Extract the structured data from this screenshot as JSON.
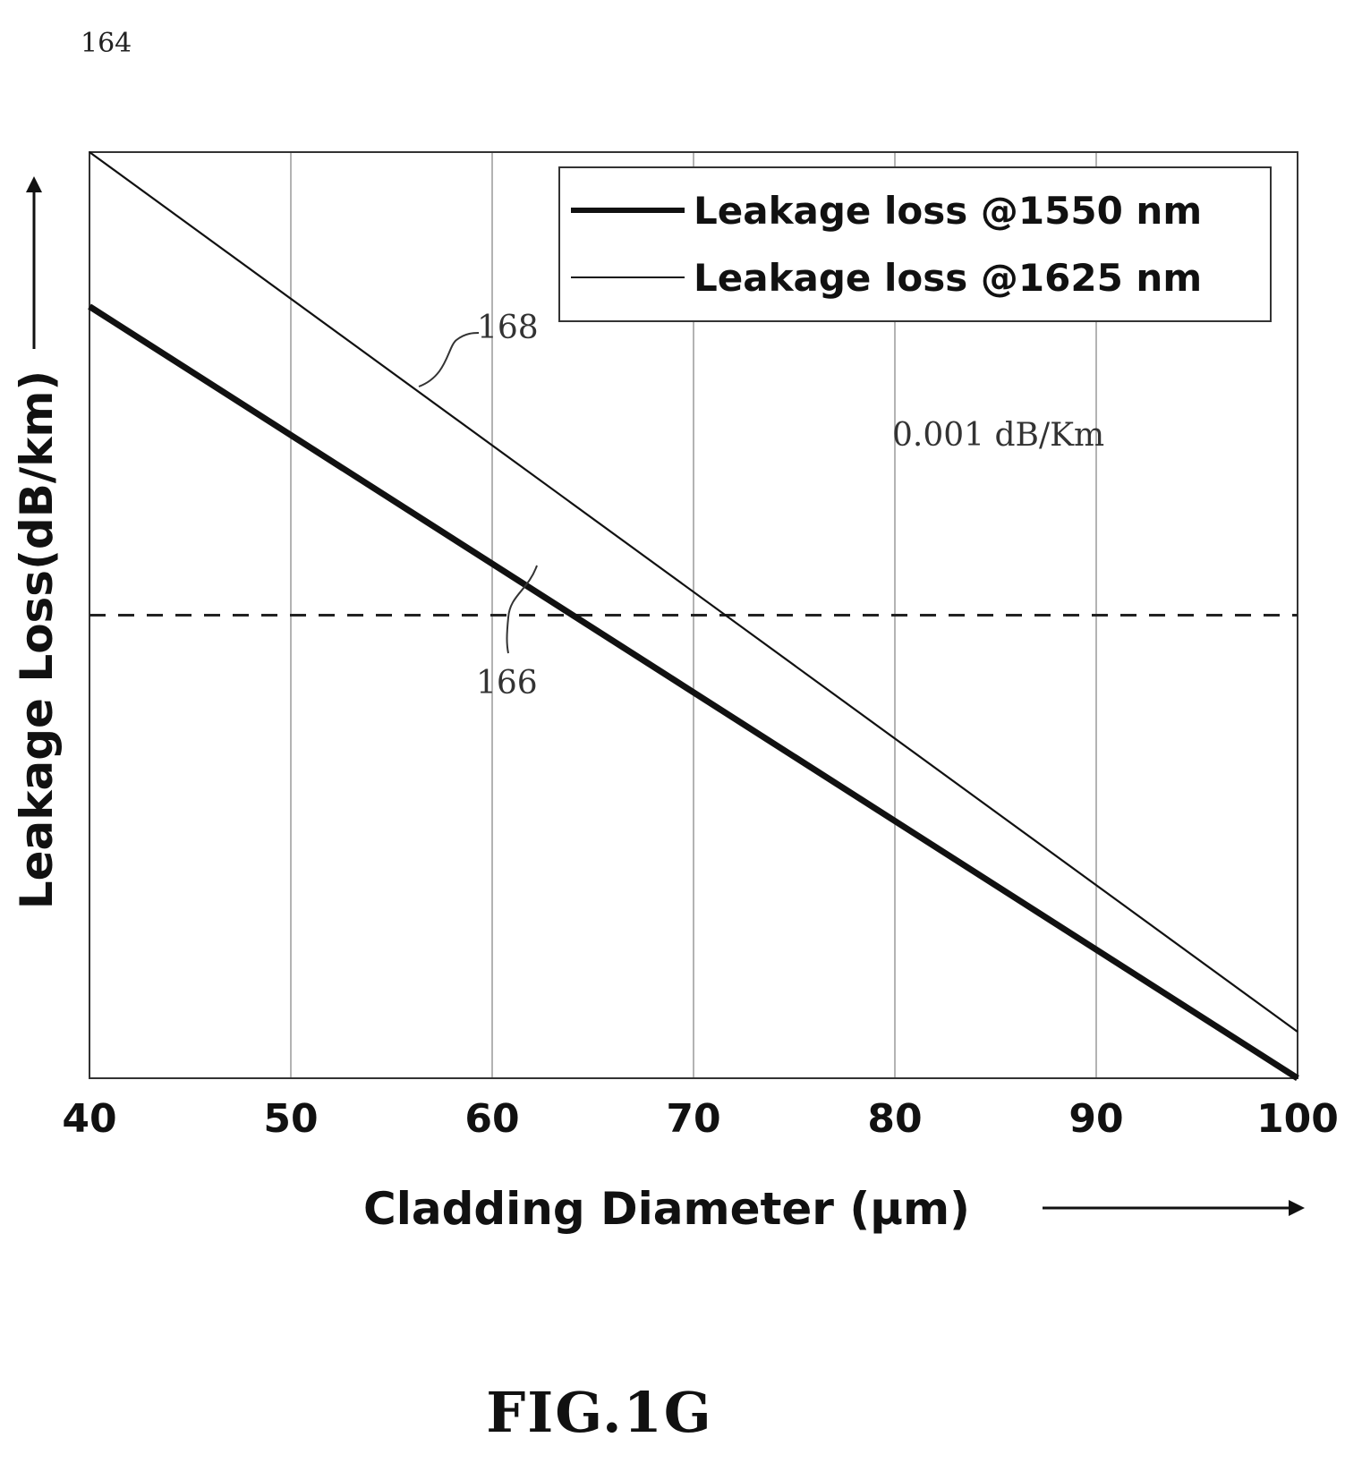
{
  "figure_ref": "164",
  "figure_caption": "FIG.1G",
  "threshold_label": "0.001 dB/Km",
  "callouts": {
    "upper_line": "168",
    "lower_line": "166"
  },
  "colors": {
    "ink": "#111111",
    "grid": "#9a9a9a"
  },
  "chart_data": {
    "type": "line",
    "title": "",
    "xlabel": "Cladding Diameter (µm)",
    "ylabel": "Leakage Loss(dB/km)",
    "x_ticks": [
      "40",
      "50",
      "60",
      "70",
      "80",
      "90",
      "100"
    ],
    "xlim": [
      40,
      100
    ],
    "y_ticks_shown": false,
    "y_scale": "log",
    "ylim": [
      1e-06,
      1
    ],
    "threshold": 0.001,
    "grid": true,
    "legend_placement": "top-right",
    "series": [
      {
        "name": "Leakage loss @1550 nm",
        "style": "thick",
        "x": [
          40,
          100
        ],
        "y": [
          0.1,
          1e-06
        ]
      },
      {
        "name": "Leakage loss @1625 nm",
        "style": "thin",
        "x": [
          40,
          100
        ],
        "y": [
          1,
          2e-06
        ]
      }
    ]
  }
}
